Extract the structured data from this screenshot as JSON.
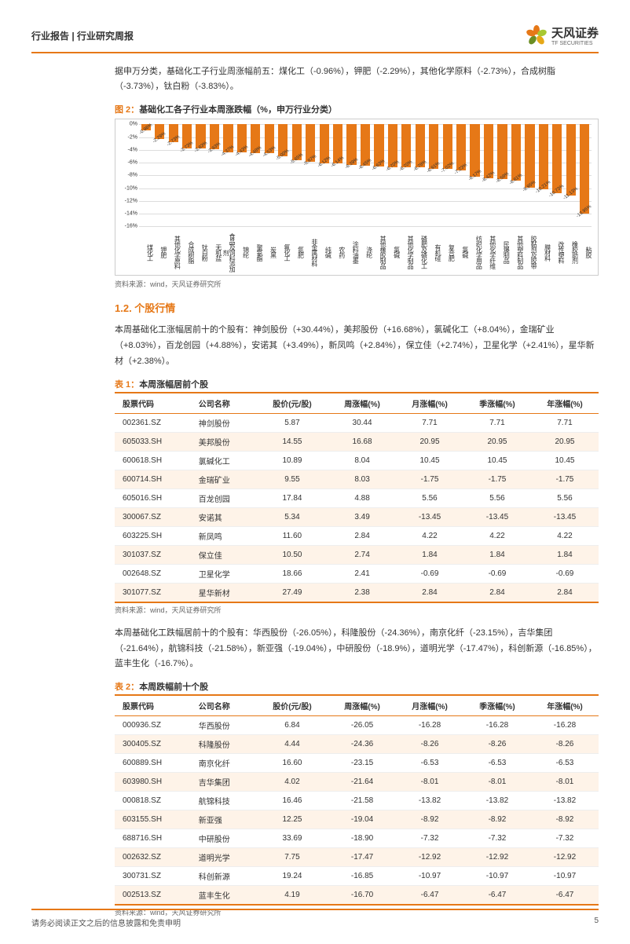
{
  "header": {
    "title": "行业报告 | 行业研究周报",
    "logo_cn": "天风证券",
    "logo_en": "TF SECURITIES"
  },
  "intro": "据申万分类，基础化工子行业周涨幅前五：煤化工（-0.96%），钾肥（-2.29%），其他化学原料（-2.73%），合成树脂（-3.73%），钛白粉（-3.83%）。",
  "chart": {
    "title_prefix": "图 2：",
    "title": "基础化工各子行业本周涨跌幅（%，申万行业分类）",
    "ylim": [
      -16,
      0
    ],
    "ytick_step": 2,
    "background_color": "#ffffff",
    "grid_color": "#dddddd",
    "bar_color": "#e67817",
    "label_fontsize": 7,
    "value_fontsize": 6,
    "categories": [
      "煤化工",
      "钾肥",
      "其他化学原料",
      "合成树脂",
      "钛白粉",
      "无机盐",
      "食品及饲料添加剂",
      "锦纶",
      "聚氨酯",
      "炭黑",
      "氟化工",
      "氮肥",
      "非金属材料",
      "纯碱",
      "农药",
      "涂料油墨",
      "涤纶",
      "其他橡胶制品",
      "氯碱",
      "其他化学制品",
      "磷肥及磷化工",
      "有机硅",
      "复合肥",
      "氯碱",
      "纺织化学用品",
      "其他化学纤维",
      "民爆制品",
      "其他塑料制品",
      "胶黏剂及胶带",
      "膜材料",
      "改性塑料",
      "橡胶助剂",
      "粘胶"
    ],
    "values": [
      -0.96,
      -2.29,
      -2.73,
      -3.73,
      -3.83,
      -3.93,
      -4.37,
      -4.43,
      -4.48,
      -4.53,
      -5.0,
      -5.65,
      -5.87,
      -6.12,
      -6.14,
      -6.39,
      -6.45,
      -6.63,
      -6.7,
      -6.7,
      -6.78,
      -6.91,
      -7.02,
      -7.23,
      -8.17,
      -8.42,
      -8.58,
      -8.81,
      -9.95,
      -10.21,
      -10.73,
      -11.13,
      -13.95
    ]
  },
  "source": "资料来源：wind，天风证券研究所",
  "section_1_2": "1.2. 个股行情",
  "para1": "本周基础化工涨幅居前十的个股有：神剑股份（+30.44%），美邦股份（+16.68%），氯碱化工（+8.04%），金瑞矿业（+8.03%），百龙创园（+4.88%），安诺其（+3.49%），新凤鸣（+2.84%），保立佳（+2.74%），卫星化学（+2.41%），星华新材（+2.38%）。",
  "table1": {
    "title_prefix": "表 1：",
    "title": "本周涨幅居前个股",
    "columns": [
      "股票代码",
      "公司名称",
      "股价(元/股)",
      "周涨幅(%)",
      "月涨幅(%)",
      "季涨幅(%)",
      "年涨幅(%)"
    ],
    "rows": [
      [
        "002361.SZ",
        "神剑股份",
        "5.87",
        "30.44",
        "7.71",
        "7.71",
        "7.71"
      ],
      [
        "605033.SH",
        "美邦股份",
        "14.55",
        "16.68",
        "20.95",
        "20.95",
        "20.95"
      ],
      [
        "600618.SH",
        "氯碱化工",
        "10.89",
        "8.04",
        "10.45",
        "10.45",
        "10.45"
      ],
      [
        "600714.SH",
        "金瑞矿业",
        "9.55",
        "8.03",
        "-1.75",
        "-1.75",
        "-1.75"
      ],
      [
        "605016.SH",
        "百龙创园",
        "17.84",
        "4.88",
        "5.56",
        "5.56",
        "5.56"
      ],
      [
        "300067.SZ",
        "安诺其",
        "5.34",
        "3.49",
        "-13.45",
        "-13.45",
        "-13.45"
      ],
      [
        "603225.SH",
        "新凤鸣",
        "11.60",
        "2.84",
        "4.22",
        "4.22",
        "4.22"
      ],
      [
        "301037.SZ",
        "保立佳",
        "10.50",
        "2.74",
        "1.84",
        "1.84",
        "1.84"
      ],
      [
        "002648.SZ",
        "卫星化学",
        "18.66",
        "2.41",
        "-0.69",
        "-0.69",
        "-0.69"
      ],
      [
        "301077.SZ",
        "星华新材",
        "27.49",
        "2.38",
        "2.84",
        "2.84",
        "2.84"
      ]
    ]
  },
  "para2": "本周基础化工跌幅居前十的个股有：华西股份（-26.05%），科隆股份（-24.36%），南京化纤（-23.15%），吉华集团（-21.64%），航锦科技（-21.58%），新亚强（-19.04%），中研股份（-18.9%），道明光学（-17.47%），科创新源（-16.85%），蓝丰生化（-16.7%）。",
  "table2": {
    "title_prefix": "表 2：",
    "title": "本周跌幅前十个股",
    "columns": [
      "股票代码",
      "公司名称",
      "股价(元/股)",
      "周涨幅(%)",
      "月涨幅(%)",
      "季涨幅(%)",
      "年涨幅(%)"
    ],
    "rows": [
      [
        "000936.SZ",
        "华西股份",
        "6.84",
        "-26.05",
        "-16.28",
        "-16.28",
        "-16.28"
      ],
      [
        "300405.SZ",
        "科隆股份",
        "4.44",
        "-24.36",
        "-8.26",
        "-8.26",
        "-8.26"
      ],
      [
        "600889.SH",
        "南京化纤",
        "16.60",
        "-23.15",
        "-6.53",
        "-6.53",
        "-6.53"
      ],
      [
        "603980.SH",
        "吉华集团",
        "4.02",
        "-21.64",
        "-8.01",
        "-8.01",
        "-8.01"
      ],
      [
        "000818.SZ",
        "航锦科技",
        "16.46",
        "-21.58",
        "-13.82",
        "-13.82",
        "-13.82"
      ],
      [
        "603155.SH",
        "新亚强",
        "12.25",
        "-19.04",
        "-8.92",
        "-8.92",
        "-8.92"
      ],
      [
        "688716.SH",
        "中研股份",
        "33.69",
        "-18.90",
        "-7.32",
        "-7.32",
        "-7.32"
      ],
      [
        "002632.SZ",
        "道明光学",
        "7.75",
        "-17.47",
        "-12.92",
        "-12.92",
        "-12.92"
      ],
      [
        "300731.SZ",
        "科创新源",
        "19.24",
        "-16.85",
        "-10.97",
        "-10.97",
        "-10.97"
      ],
      [
        "002513.SZ",
        "蓝丰生化",
        "4.19",
        "-16.70",
        "-6.47",
        "-6.47",
        "-6.47"
      ]
    ]
  },
  "footer": {
    "disclaimer": "请务必阅读正文之后的信息披露和免责申明",
    "page": "5"
  },
  "petal_colors": [
    "#e67817",
    "#a8c832",
    "#e6a817",
    "#6b8e23",
    "#e67817"
  ]
}
